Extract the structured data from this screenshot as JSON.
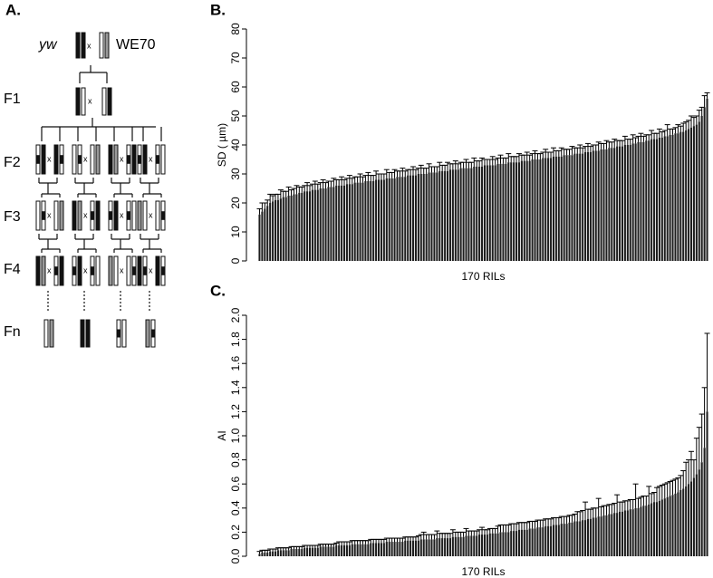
{
  "diagram": {
    "panel_label": "A.",
    "parent_left": "yw",
    "parent_right": "WE70",
    "cross": "x",
    "generations": [
      "F1",
      "F2",
      "F3",
      "F4",
      "Fn"
    ]
  },
  "chart_data": [
    {
      "type": "bar",
      "panel_label": "B.",
      "ylabel": "SD ( µm)",
      "xlabel": "170 RILs",
      "color": "#1e1e1e",
      "ylim": [
        0,
        80
      ],
      "yticks": [
        0,
        10,
        20,
        30,
        40,
        50,
        60,
        70,
        80
      ],
      "values": [
        16,
        17,
        18,
        19,
        20,
        20.5,
        21,
        21,
        21.5,
        22,
        22,
        22.5,
        22.5,
        23,
        23,
        23.5,
        23.5,
        24,
        24,
        24,
        24.5,
        24.5,
        24.5,
        25,
        25,
        25,
        25.5,
        25.5,
        25.5,
        26,
        26,
        26,
        26,
        26.5,
        26.5,
        26.5,
        27,
        27,
        27,
        27,
        27.5,
        27.5,
        27.5,
        27.5,
        28,
        28,
        28,
        28,
        28.5,
        28.5,
        28.5,
        28.5,
        29,
        29,
        29,
        29,
        29.5,
        29.5,
        29.5,
        29.5,
        30,
        30,
        30,
        30,
        30.5,
        30.5,
        30.5,
        30.5,
        31,
        31,
        31,
        31,
        31.5,
        31.5,
        31.5,
        31.5,
        32,
        32,
        32,
        32,
        32,
        32.5,
        32.5,
        32.5,
        32.5,
        33,
        33,
        33,
        33,
        33,
        33.5,
        33.5,
        33.5,
        33.5,
        34,
        34,
        34,
        34,
        34,
        34.5,
        34.5,
        34.5,
        34.5,
        35,
        35,
        35,
        35,
        35.5,
        35.5,
        35.5,
        35.5,
        36,
        36,
        36,
        36,
        36.5,
        36.5,
        36.5,
        36.5,
        37,
        37,
        37,
        37,
        37.5,
        37.5,
        37.5,
        38,
        38,
        38,
        38.5,
        38.5,
        38.5,
        39,
        39,
        39,
        39.5,
        39.5,
        39.5,
        40,
        40,
        40,
        40.5,
        40.5,
        41,
        41,
        41,
        41.5,
        41.5,
        42,
        42,
        42,
        42.5,
        42.5,
        43,
        43,
        43.5,
        43.5,
        44,
        44,
        44.5,
        44.5,
        45,
        45.5,
        46,
        46.5,
        47,
        48,
        50,
        53,
        56
      ],
      "errors": [
        2,
        3,
        2,
        2,
        3,
        2,
        2,
        2,
        3,
        2,
        2,
        3,
        2,
        2,
        3,
        2,
        2,
        2,
        3,
        2,
        2,
        3,
        2,
        2,
        3,
        2,
        2,
        2,
        3,
        2,
        2,
        3,
        2,
        2,
        3,
        2,
        2,
        2,
        3,
        2,
        2,
        3,
        2,
        2,
        3,
        2,
        2,
        2,
        3,
        2,
        2,
        3,
        2,
        2,
        3,
        2,
        2,
        2,
        3,
        2,
        2,
        3,
        2,
        2,
        3,
        2,
        2,
        2,
        3,
        2,
        2,
        3,
        2,
        2,
        3,
        2,
        2,
        2,
        3,
        2,
        2,
        3,
        2,
        2,
        3,
        2,
        2,
        2,
        3,
        2,
        2,
        3,
        2,
        2,
        3,
        2,
        2,
        2,
        3,
        2,
        2,
        3,
        2,
        2,
        3,
        2,
        2,
        2,
        3,
        2,
        2,
        3,
        2,
        2,
        3,
        2,
        2,
        2,
        3,
        2,
        2,
        3,
        2,
        2,
        3,
        2,
        2,
        2,
        3,
        2,
        2,
        3,
        2,
        2,
        3,
        2,
        2,
        2,
        3,
        2,
        2,
        3,
        2,
        2,
        3,
        2,
        2,
        2,
        3,
        2,
        2,
        3,
        2,
        2,
        4,
        2,
        2,
        2,
        3,
        2,
        3,
        3,
        3,
        4,
        3,
        3,
        4,
        3,
        4,
        2
      ]
    },
    {
      "type": "bar",
      "panel_label": "C.",
      "ylabel": "AI",
      "xlabel": "170 RILs",
      "color": "#1e1e1e",
      "ylim": [
        0,
        2
      ],
      "yticks": [
        {
          "value": 0,
          "label": "0.0"
        },
        0.2,
        0.4,
        0.6,
        0.8,
        {
          "value": 1,
          "label": "1.0"
        },
        1.2,
        1.4,
        1.6,
        1.8,
        {
          "value": 2,
          "label": "2.0"
        }
      ],
      "values": [
        0.02,
        0.03,
        0.03,
        0.03,
        0.04,
        0.04,
        0.04,
        0.05,
        0.05,
        0.05,
        0.05,
        0.05,
        0.06,
        0.06,
        0.06,
        0.06,
        0.06,
        0.07,
        0.07,
        0.07,
        0.07,
        0.07,
        0.07,
        0.08,
        0.08,
        0.08,
        0.08,
        0.08,
        0.08,
        0.09,
        0.09,
        0.09,
        0.09,
        0.09,
        0.09,
        0.1,
        0.1,
        0.1,
        0.1,
        0.1,
        0.1,
        0.1,
        0.11,
        0.11,
        0.11,
        0.11,
        0.11,
        0.11,
        0.12,
        0.12,
        0.12,
        0.12,
        0.12,
        0.12,
        0.12,
        0.13,
        0.13,
        0.13,
        0.13,
        0.13,
        0.13,
        0.14,
        0.14,
        0.14,
        0.14,
        0.14,
        0.14,
        0.15,
        0.15,
        0.15,
        0.15,
        0.15,
        0.15,
        0.16,
        0.16,
        0.16,
        0.16,
        0.16,
        0.17,
        0.17,
        0.17,
        0.17,
        0.17,
        0.18,
        0.18,
        0.18,
        0.18,
        0.19,
        0.19,
        0.19,
        0.19,
        0.2,
        0.2,
        0.2,
        0.2,
        0.21,
        0.21,
        0.21,
        0.22,
        0.22,
        0.22,
        0.22,
        0.23,
        0.23,
        0.23,
        0.24,
        0.24,
        0.24,
        0.25,
        0.25,
        0.25,
        0.26,
        0.26,
        0.26,
        0.27,
        0.27,
        0.27,
        0.28,
        0.28,
        0.29,
        0.29,
        0.29,
        0.3,
        0.3,
        0.31,
        0.31,
        0.32,
        0.32,
        0.33,
        0.33,
        0.34,
        0.34,
        0.35,
        0.35,
        0.36,
        0.36,
        0.37,
        0.37,
        0.38,
        0.38,
        0.39,
        0.39,
        0.4,
        0.4,
        0.41,
        0.42,
        0.42,
        0.43,
        0.44,
        0.45,
        0.45,
        0.46,
        0.47,
        0.48,
        0.49,
        0.5,
        0.51,
        0.52,
        0.53,
        0.55,
        0.56,
        0.58,
        0.6,
        0.62,
        0.65,
        0.68,
        0.72,
        0.78,
        0.9,
        1.2
      ],
      "errors": [
        0.02,
        0.02,
        0.02,
        0.02,
        0.02,
        0.02,
        0.02,
        0.02,
        0.02,
        0.02,
        0.02,
        0.02,
        0.02,
        0.02,
        0.02,
        0.02,
        0.02,
        0.02,
        0.02,
        0.02,
        0.02,
        0.02,
        0.02,
        0.02,
        0.02,
        0.02,
        0.02,
        0.02,
        0.02,
        0.02,
        0.03,
        0.03,
        0.03,
        0.03,
        0.03,
        0.03,
        0.03,
        0.03,
        0.03,
        0.03,
        0.03,
        0.03,
        0.03,
        0.03,
        0.03,
        0.03,
        0.03,
        0.03,
        0.03,
        0.03,
        0.03,
        0.03,
        0.03,
        0.03,
        0.03,
        0.03,
        0.03,
        0.03,
        0.03,
        0.03,
        0.04,
        0.04,
        0.06,
        0.04,
        0.04,
        0.04,
        0.04,
        0.06,
        0.04,
        0.04,
        0.04,
        0.04,
        0.04,
        0.06,
        0.04,
        0.04,
        0.04,
        0.04,
        0.06,
        0.04,
        0.04,
        0.04,
        0.04,
        0.04,
        0.06,
        0.04,
        0.04,
        0.04,
        0.04,
        0.04,
        0.06,
        0.06,
        0.06,
        0.06,
        0.06,
        0.06,
        0.06,
        0.06,
        0.06,
        0.06,
        0.06,
        0.06,
        0.06,
        0.06,
        0.06,
        0.06,
        0.06,
        0.06,
        0.06,
        0.06,
        0.06,
        0.06,
        0.06,
        0.06,
        0.06,
        0.06,
        0.06,
        0.06,
        0.06,
        0.06,
        0.08,
        0.08,
        0.08,
        0.15,
        0.08,
        0.08,
        0.08,
        0.08,
        0.15,
        0.08,
        0.08,
        0.08,
        0.08,
        0.08,
        0.08,
        0.15,
        0.08,
        0.08,
        0.08,
        0.08,
        0.08,
        0.08,
        0.2,
        0.08,
        0.08,
        0.08,
        0.08,
        0.15,
        0.08,
        0.08,
        0.12,
        0.12,
        0.12,
        0.12,
        0.12,
        0.12,
        0.12,
        0.12,
        0.12,
        0.12,
        0.15,
        0.2,
        0.2,
        0.25,
        0.15,
        0.3,
        0.35,
        0.4,
        0.5,
        0.65
      ]
    }
  ]
}
